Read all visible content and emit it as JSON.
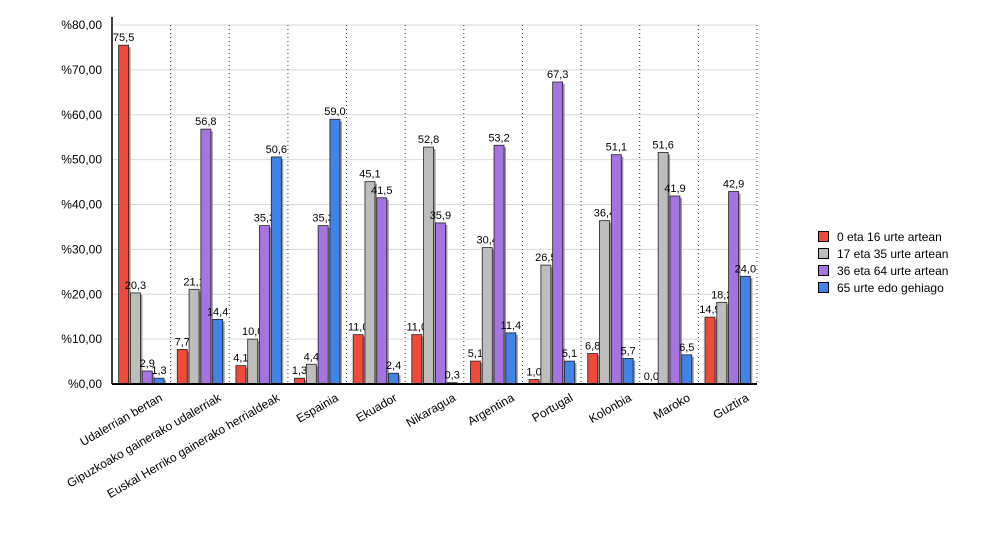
{
  "chart_data": {
    "type": "bar",
    "title": "",
    "xlabel": "",
    "ylabel": "",
    "ylim": [
      0,
      80
    ],
    "yticks": [
      "%0,00",
      "%10,00",
      "%20,00",
      "%30,00",
      "%40,00",
      "%50,00",
      "%60,00",
      "%70,00",
      "%80,00"
    ],
    "grid": true,
    "legend_position": "right",
    "categories": [
      "Udalerrian bertan",
      "Gipuzkoako gainerako udalerriak",
      "Euskal Herriko gainerako herrialdeak",
      "Espainia",
      "Ekuador",
      "Nikaragua",
      "Argentina",
      "Portugal",
      "Kolonbia",
      "Maroko",
      "Guztira"
    ],
    "series": [
      {
        "name": "0 eta 16 urte artean",
        "color": "#f04a3a",
        "values": [
          75.5,
          7.7,
          4.1,
          1.3,
          11.0,
          11.0,
          5.1,
          1.0,
          6.8,
          0.0,
          14.9
        ],
        "labels": [
          "75,5",
          "7,7",
          "4,1",
          "1,3",
          "11,0",
          "11,0",
          "5,1",
          "1,0",
          "6,8",
          "0,0",
          "14,9"
        ]
      },
      {
        "name": "17 eta 35 urte artean",
        "color": "#bdbdbd",
        "values": [
          20.3,
          21.1,
          10.0,
          4.4,
          45.1,
          52.8,
          30.4,
          26.5,
          36.4,
          51.6,
          18.2
        ],
        "labels": [
          "20,3",
          "21,1",
          "10,0",
          "4,4",
          "45,1",
          "52,8",
          "30,4",
          "26,5",
          "36,4",
          "51,6",
          "18,2"
        ]
      },
      {
        "name": "36 eta 64 urte artean",
        "color": "#a574e0",
        "values": [
          2.9,
          56.8,
          35.3,
          35.3,
          41.5,
          35.9,
          53.2,
          67.3,
          51.1,
          41.9,
          42.9
        ],
        "labels": [
          "2,9",
          "56,8",
          "35,3",
          "35,3",
          "41,5",
          "35,9",
          "53,2",
          "67,3",
          "51,1",
          "41,9",
          "42,9"
        ]
      },
      {
        "name": "65 urte edo gehiago",
        "color": "#3f84e6",
        "values": [
          1.3,
          14.4,
          50.6,
          59.0,
          2.4,
          0.3,
          11.4,
          5.1,
          5.7,
          6.5,
          24.0
        ],
        "labels": [
          "1,3",
          "14,4",
          "50,6",
          "59,0",
          "2,4",
          "0,3",
          "11,4",
          "5,1",
          "5,7",
          "6,5",
          "24,0"
        ]
      }
    ]
  }
}
